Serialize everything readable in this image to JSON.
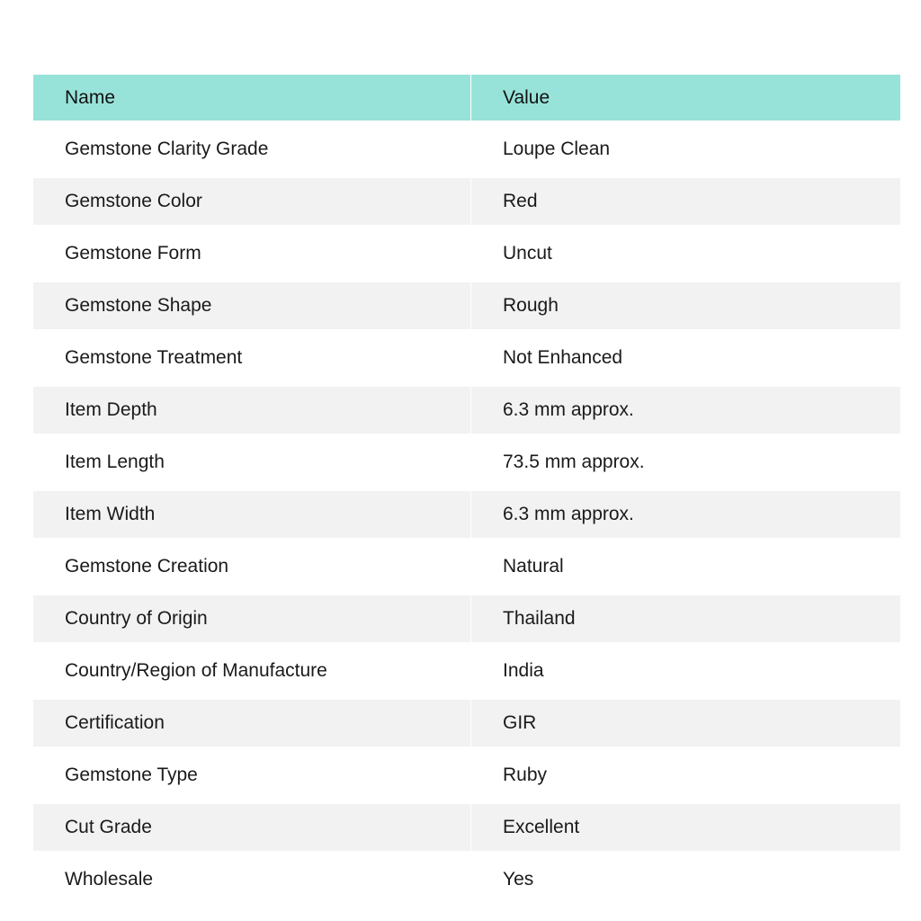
{
  "header": {
    "name": "Name",
    "value": "Value"
  },
  "header_color": "#98e3d9",
  "stripe_color": "#f2f2f2",
  "rows": [
    {
      "name": "Gemstone Clarity Grade",
      "value": "Loupe Clean"
    },
    {
      "name": "Gemstone Color",
      "value": "Red"
    },
    {
      "name": "Gemstone Form",
      "value": "Uncut"
    },
    {
      "name": "Gemstone Shape",
      "value": "Rough"
    },
    {
      "name": "Gemstone Treatment",
      "value": "Not Enhanced"
    },
    {
      "name": "Item Depth",
      "value": "6.3 mm approx."
    },
    {
      "name": "Item Length",
      "value": "73.5 mm approx."
    },
    {
      "name": "Item Width",
      "value": "6.3 mm approx."
    },
    {
      "name": "Gemstone Creation",
      "value": "Natural"
    },
    {
      "name": "Country of Origin",
      "value": "Thailand"
    },
    {
      "name": "Country/Region of Manufacture",
      "value": "India"
    },
    {
      "name": "Certification",
      "value": "GIR"
    },
    {
      "name": "Gemstone Type",
      "value": "Ruby"
    },
    {
      "name": "Cut Grade",
      "value": "Excellent"
    },
    {
      "name": "Wholesale",
      "value": "Yes"
    }
  ]
}
